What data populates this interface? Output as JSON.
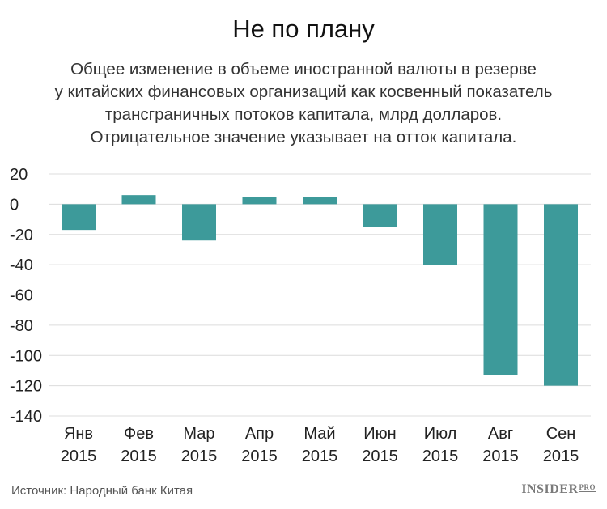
{
  "title": "Не по плану",
  "subtitle_lines": [
    "Общее изменение в объеме иностранной валюты в резерве",
    "у китайских финансовых организаций как косвенный показатель",
    "трансграничных потоков капитала, млрд долларов.",
    "Отрицательное значение указывает на отток капитала."
  ],
  "source": "Источник: Народный банк Китая",
  "logo": {
    "main": "INSIDER",
    "sup": "PRO"
  },
  "colors": {
    "bar": "#3d9a9a",
    "grid": "#dcdcdc",
    "axis_text": "#222222"
  },
  "chart_data": {
    "type": "bar",
    "categories": [
      [
        "Янв",
        "2015"
      ],
      [
        "Фев",
        "2015"
      ],
      [
        "Мар",
        "2015"
      ],
      [
        "Апр",
        "2015"
      ],
      [
        "Май",
        "2015"
      ],
      [
        "Июн",
        "2015"
      ],
      [
        "Июл",
        "2015"
      ],
      [
        "Авг",
        "2015"
      ],
      [
        "Сен",
        "2015"
      ]
    ],
    "values": [
      -17,
      6,
      -24,
      5,
      5,
      -15,
      -40,
      -113,
      -120
    ],
    "ylim": [
      -140,
      20
    ],
    "yticks": [
      20,
      0,
      -20,
      -40,
      -60,
      -80,
      -100,
      -120,
      -140
    ],
    "grid": true
  }
}
